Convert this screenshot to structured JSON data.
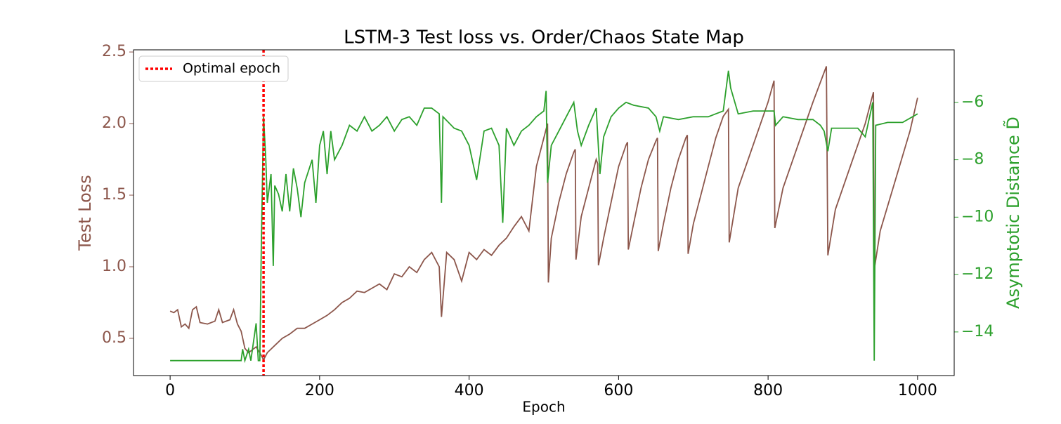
{
  "chart_data": {
    "type": "line",
    "title": "LSTM-3 Test loss vs. Order/Chaos State Map",
    "xlabel": "Epoch",
    "ylabel": "Test Loss",
    "y2label": "Asymptotic Distance D̃",
    "xlim": [
      -49,
      1049
    ],
    "xticks": [
      0,
      200,
      400,
      600,
      800,
      1000
    ],
    "ylim": [
      0.24,
      2.515
    ],
    "yticks": [
      0.5,
      {
        "value": 1,
        "label": "1.0"
      },
      1.5,
      {
        "value": 2,
        "label": "2.0"
      },
      2.5
    ],
    "y2lim": [
      -15.52,
      -4.17
    ],
    "y2ticks": [
      {
        "value": -14,
        "label": "−14"
      },
      {
        "value": -12,
        "label": "−12"
      },
      {
        "value": -10,
        "label": "−10"
      },
      {
        "value": -8,
        "label": "−8"
      },
      {
        "value": -6,
        "label": "−6"
      }
    ],
    "ycolor": "#8c564b",
    "y2color": "#2ca02c",
    "vline": {
      "x": 125,
      "name": "Optimal epoch",
      "color": "#ff0000"
    },
    "legend": "upper left",
    "series": [
      {
        "color": "#8c564b",
        "axis": "y",
        "x": [
          0,
          5,
          10,
          15,
          20,
          25,
          30,
          35,
          40,
          50,
          60,
          65,
          70,
          80,
          85,
          90,
          95,
          100,
          105,
          110,
          115,
          120,
          125,
          130,
          140,
          150,
          160,
          170,
          180,
          190,
          200,
          210,
          220,
          230,
          240,
          250,
          260,
          270,
          280,
          290,
          300,
          310,
          320,
          330,
          340,
          350,
          360,
          363,
          370,
          380,
          390,
          400,
          410,
          420,
          430,
          440,
          450,
          460,
          470,
          480,
          490,
          500,
          505,
          506,
          510,
          520,
          530,
          540,
          542,
          543,
          550,
          560,
          570,
          572,
          573,
          580,
          590,
          600,
          610,
          612,
          613,
          620,
          630,
          640,
          650,
          652,
          653,
          660,
          670,
          680,
          690,
          692,
          693,
          700,
          710,
          720,
          730,
          740,
          747,
          748,
          760,
          780,
          800,
          808,
          809,
          820,
          840,
          860,
          878,
          880,
          890,
          910,
          930,
          941,
          942,
          950,
          970,
          990,
          1000
        ],
        "values": [
          0.69,
          0.68,
          0.7,
          0.58,
          0.6,
          0.57,
          0.7,
          0.72,
          0.61,
          0.6,
          0.62,
          0.7,
          0.61,
          0.63,
          0.7,
          0.6,
          0.55,
          0.43,
          0.4,
          0.42,
          0.44,
          0.4,
          0.35,
          0.4,
          0.45,
          0.5,
          0.53,
          0.57,
          0.57,
          0.6,
          0.63,
          0.66,
          0.7,
          0.75,
          0.78,
          0.83,
          0.82,
          0.85,
          0.88,
          0.84,
          0.95,
          0.93,
          1.0,
          0.96,
          1.05,
          1.1,
          1.0,
          0.65,
          1.1,
          1.05,
          0.9,
          1.1,
          1.05,
          1.12,
          1.08,
          1.15,
          1.2,
          1.28,
          1.35,
          1.25,
          1.7,
          1.9,
          2.0,
          0.89,
          1.2,
          1.45,
          1.65,
          1.8,
          1.82,
          1.05,
          1.35,
          1.55,
          1.75,
          1.72,
          1.01,
          1.2,
          1.45,
          1.7,
          1.85,
          1.87,
          1.12,
          1.3,
          1.55,
          1.75,
          1.88,
          1.9,
          1.11,
          1.3,
          1.55,
          1.75,
          1.9,
          1.92,
          1.09,
          1.3,
          1.5,
          1.7,
          1.9,
          2.05,
          2.1,
          1.17,
          1.55,
          1.85,
          2.15,
          2.3,
          1.27,
          1.55,
          1.85,
          2.15,
          2.4,
          1.08,
          1.4,
          1.7,
          2.0,
          2.22,
          0.98,
          1.25,
          1.6,
          1.95,
          2.18
        ]
      },
      {
        "color": "#2ca02c",
        "axis": "y2",
        "x": [
          0,
          95,
          97,
          100,
          105,
          108,
          115,
          118,
          120,
          122,
          125,
          128,
          130,
          135,
          138,
          140,
          145,
          150,
          155,
          160,
          165,
          170,
          175,
          180,
          190,
          195,
          200,
          205,
          210,
          215,
          220,
          230,
          240,
          250,
          260,
          270,
          280,
          290,
          300,
          310,
          320,
          330,
          340,
          350,
          360,
          363,
          365,
          380,
          390,
          400,
          410,
          420,
          430,
          440,
          445,
          450,
          460,
          470,
          480,
          490,
          500,
          503,
          505,
          510,
          520,
          530,
          540,
          545,
          550,
          560,
          570,
          575,
          580,
          590,
          600,
          610,
          620,
          640,
          650,
          655,
          660,
          680,
          700,
          720,
          740,
          747,
          750,
          760,
          780,
          800,
          808,
          810,
          820,
          840,
          860,
          870,
          875,
          880,
          885,
          900,
          920,
          930,
          940,
          942,
          944,
          960,
          980,
          1000
        ],
        "values": [
          -15,
          -15,
          -14.6,
          -15,
          -14.6,
          -15,
          -13.7,
          -15,
          -15,
          -11,
          -6.5,
          -8,
          -9.5,
          -8.5,
          -11.7,
          -8.9,
          -9.2,
          -9.8,
          -8.5,
          -9.8,
          -8.3,
          -9.0,
          -10.0,
          -8.8,
          -8.0,
          -9.5,
          -7.5,
          -7.0,
          -8.5,
          -7.0,
          -8.0,
          -7.5,
          -6.8,
          -7.0,
          -6.5,
          -7.0,
          -6.8,
          -6.5,
          -7.0,
          -6.6,
          -6.5,
          -6.8,
          -6.2,
          -6.2,
          -6.4,
          -9.5,
          -6.5,
          -6.9,
          -7.0,
          -7.5,
          -8.7,
          -7.0,
          -6.9,
          -7.5,
          -10.2,
          -6.9,
          -7.5,
          -7.0,
          -6.8,
          -6.5,
          -6.3,
          -5.6,
          -8.8,
          -7.5,
          -7.0,
          -6.5,
          -6.0,
          -7.0,
          -7.5,
          -6.8,
          -6.2,
          -8.5,
          -7.2,
          -6.5,
          -6.2,
          -6.0,
          -6.1,
          -6.2,
          -6.5,
          -7.0,
          -6.5,
          -6.6,
          -6.5,
          -6.5,
          -6.3,
          -4.9,
          -5.5,
          -6.4,
          -6.3,
          -6.3,
          -6.3,
          -6.8,
          -6.5,
          -6.6,
          -6.6,
          -6.8,
          -7.0,
          -7.7,
          -6.9,
          -6.9,
          -6.9,
          -7.2,
          -6.0,
          -15,
          -6.8,
          -6.7,
          -6.7,
          -6.4
        ]
      }
    ]
  }
}
